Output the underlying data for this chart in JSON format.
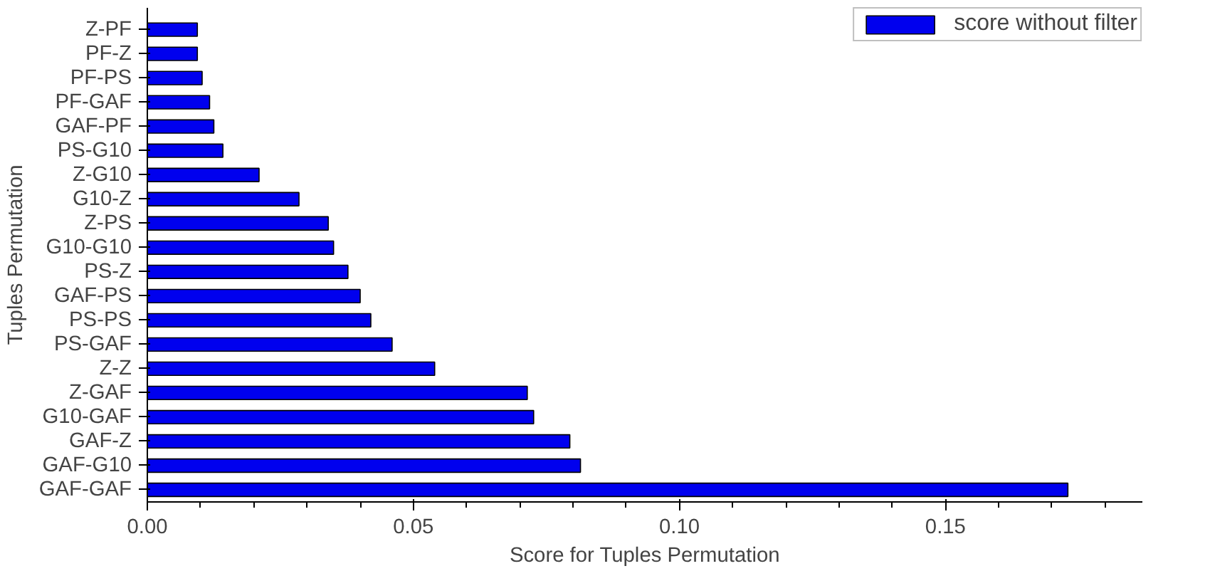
{
  "chart_data": {
    "type": "bar",
    "orientation": "horizontal",
    "xlabel": "Score for Tuples Permutation",
    "ylabel": "Tuples Permutation",
    "categories": [
      "Z-PF",
      "PF-Z",
      "PF-PS",
      "PF-GAF",
      "GAF-PF",
      "PS-G10",
      "Z-G10",
      "G10-Z",
      "Z-PS",
      "G10-G10",
      "PS-Z",
      "GAF-PS",
      "PS-PS",
      "PS-GAF",
      "Z-Z",
      "Z-GAF",
      "G10-GAF",
      "GAF-Z",
      "GAF-G10",
      "GAF-GAF"
    ],
    "series": [
      {
        "name": "score without filter",
        "color": "#0000ee",
        "values": [
          0.0094,
          0.0094,
          0.0103,
          0.0117,
          0.0125,
          0.0142,
          0.021,
          0.0285,
          0.034,
          0.035,
          0.0377,
          0.04,
          0.042,
          0.046,
          0.054,
          0.0714,
          0.0726,
          0.0794,
          0.0814,
          0.173
        ]
      }
    ],
    "xlim": [
      0,
      0.187
    ],
    "xticks": [
      {
        "value": 0,
        "label": "0.00"
      },
      0.05,
      {
        "value": 0.1,
        "label": "0.10"
      },
      0.15
    ],
    "grid": false,
    "legend": "top right"
  }
}
